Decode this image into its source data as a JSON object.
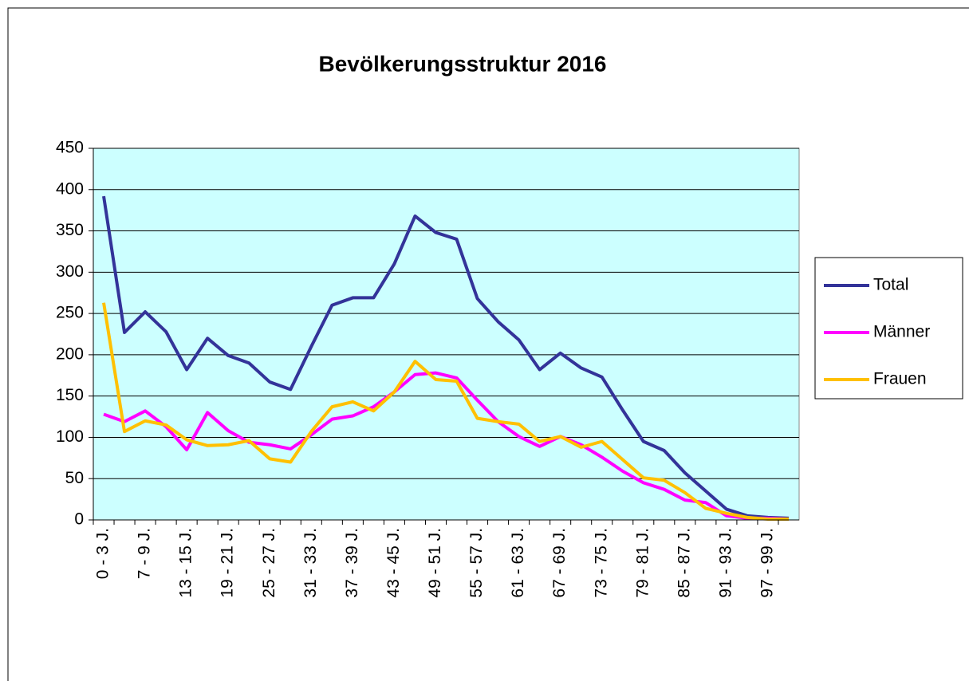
{
  "chart_data": {
    "type": "line",
    "title": "Bevölkerungsstruktur 2016",
    "categories": [
      "0 - 3 J.",
      null,
      "7 - 9 J.",
      null,
      "13 - 15 J.",
      null,
      "19 - 21 J.",
      null,
      "25 - 27 J.",
      null,
      "31 - 33 J.",
      null,
      "37 - 39 J.",
      null,
      "43 - 45 J.",
      null,
      "49 - 51 J.",
      null,
      "55 - 57 J.",
      null,
      "61 - 63 J.",
      null,
      "67 - 69 J.",
      null,
      "73 - 75 J.",
      null,
      "79 - 81 J.",
      null,
      "85 - 87 J.",
      null,
      "91 - 93 J.",
      null,
      "97 - 99 J.",
      null
    ],
    "series": [
      {
        "name": "Total",
        "color": "#333399",
        "values": [
          392,
          227,
          252,
          228,
          182,
          220,
          199,
          190,
          167,
          158,
          210,
          260,
          269,
          269,
          310,
          368,
          348,
          340,
          268,
          240,
          218,
          182,
          202,
          184,
          173,
          133,
          95,
          84,
          57,
          35,
          13,
          5,
          3,
          2
        ]
      },
      {
        "name": "Männer",
        "color": "#ff00ff",
        "values": [
          128,
          119,
          132,
          113,
          85,
          130,
          108,
          94,
          91,
          86,
          103,
          122,
          126,
          137,
          155,
          176,
          178,
          172,
          145,
          119,
          101,
          89,
          101,
          91,
          76,
          59,
          45,
          37,
          24,
          21,
          5,
          2,
          2,
          1
        ]
      },
      {
        "name": "Frauen",
        "color": "#ffc000",
        "values": [
          263,
          107,
          120,
          115,
          97,
          90,
          91,
          96,
          74,
          70,
          107,
          137,
          143,
          132,
          155,
          192,
          170,
          168,
          123,
          119,
          116,
          95,
          101,
          88,
          95,
          73,
          51,
          48,
          33,
          14,
          8,
          3,
          1,
          1
        ]
      }
    ],
    "ylim": [
      0,
      450
    ],
    "yticks": [
      0,
      50,
      100,
      150,
      200,
      250,
      300,
      350,
      400,
      450
    ],
    "grid": true,
    "legend": "right"
  }
}
